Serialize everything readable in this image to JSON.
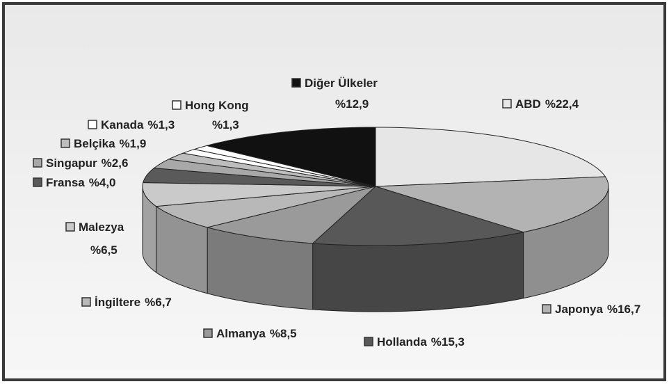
{
  "chart_data": {
    "type": "pie3d",
    "categories": [
      "ABD",
      "Japonya",
      "Hollanda",
      "Almanya",
      "İngiltere",
      "Malezya",
      "Fransa",
      "Singapur",
      "Belçika",
      "Kanada",
      "Hong Kong",
      "Diğer Ülkeler"
    ],
    "values": [
      22.4,
      16.7,
      15.3,
      8.5,
      6.7,
      6.5,
      4.0,
      2.6,
      1.9,
      1.3,
      1.3,
      12.9
    ],
    "value_labels": [
      "%22,4",
      "%16,7",
      "%15,3",
      "%8,5",
      "%6,7",
      "%6,5",
      "%4,0",
      "%2,6",
      "%1,9",
      "%1,3",
      "%1,3",
      "%12,9"
    ],
    "colors": [
      "#e6e6e6",
      "#b3b3b3",
      "#585858",
      "#9a9a9a",
      "#b8b8b8",
      "#cacaca",
      "#5a5a5a",
      "#a8a8a8",
      "#bdbdbd",
      "#ffffff",
      "#ffffff",
      "#111111"
    ],
    "legend": true
  }
}
